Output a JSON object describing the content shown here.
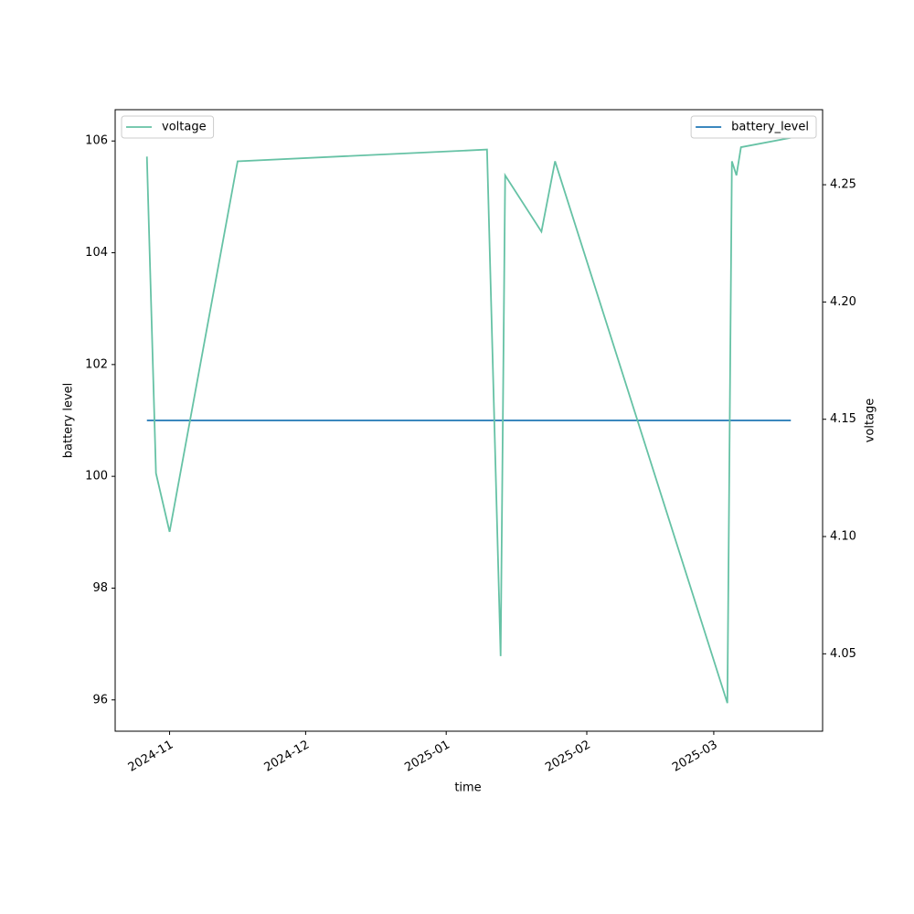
{
  "chart_data": {
    "type": "line",
    "x_label": "time",
    "y_label": "battery level",
    "y2_label": "voltage",
    "x": [
      "2024-10-27",
      "2024-10-29",
      "2024-11-01",
      "2024-11-16",
      "2025-01-10",
      "2025-01-13",
      "2025-01-14",
      "2025-01-22",
      "2025-01-25",
      "2025-03-04",
      "2025-03-05",
      "2025-03-06",
      "2025-03-07",
      "2025-03-18"
    ],
    "xlim": [
      "2024-10-20",
      "2025-03-25"
    ],
    "xticks": [
      {
        "value": "2024-11-01",
        "label": "2024-11"
      },
      {
        "value": "2024-12-01",
        "label": "2024-12"
      },
      {
        "value": "2025-01-01",
        "label": "2025-01"
      },
      {
        "value": "2025-02-01",
        "label": "2025-02"
      },
      {
        "value": "2025-03-01",
        "label": "2025-03"
      }
    ],
    "ylim": [
      95.44,
      106.56
    ],
    "yticks": [
      96,
      98,
      100,
      102,
      104,
      106
    ],
    "y2lim": [
      4.017,
      4.282
    ],
    "y2ticks": [
      4.05,
      {
        "value": 4.1,
        "label": "4.10"
      },
      4.15,
      {
        "value": 4.2,
        "label": "4.20"
      },
      4.25
    ],
    "series": [
      {
        "name": "battery_level",
        "color": "#1f77b4",
        "legend": "upper right",
        "values": [
          101,
          101,
          101,
          101,
          101,
          101,
          101,
          101,
          101,
          101,
          101,
          101,
          101,
          101
        ]
      },
      {
        "name": "voltage",
        "color": "#66c2a5",
        "axis": "y2",
        "legend": "upper left",
        "values": [
          4.262,
          4.127,
          4.102,
          4.26,
          4.265,
          4.049,
          4.254,
          4.23,
          4.26,
          4.029,
          4.26,
          4.254,
          4.266,
          4.27
        ]
      }
    ]
  }
}
